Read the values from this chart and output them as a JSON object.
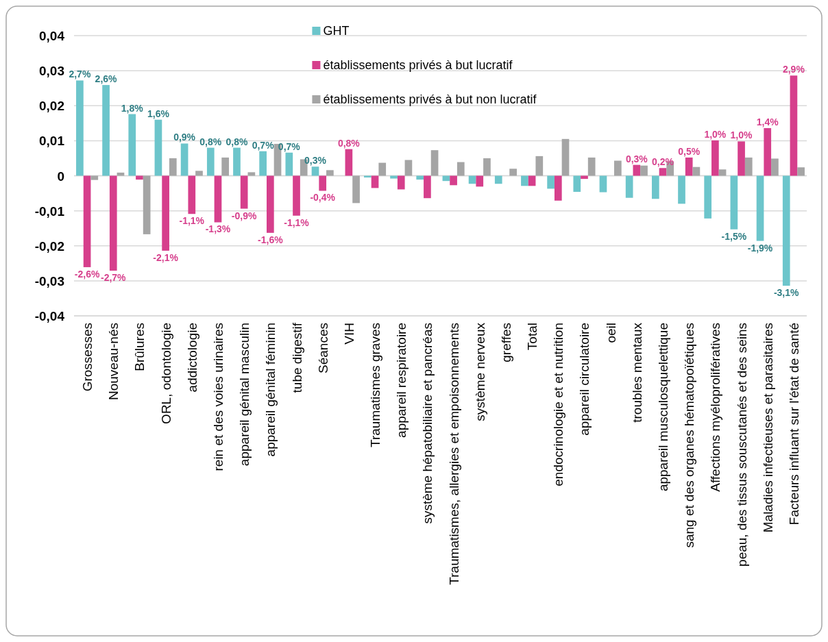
{
  "chart_data": {
    "type": "bar",
    "categories": [
      "Grossesses",
      "Nouveau-nés",
      "Brûlures",
      "ORL, odontologie",
      "addictologie",
      "rein et des voies urinaires",
      "appareil génital masculin",
      "appareil génital féminin",
      "tube digestif",
      "Séances",
      "VIH",
      "Traumatismes graves",
      "appareil respiratoire",
      "système hépatobiliaire et pancréas",
      "Traumatismes, allergies et empoisonnements",
      "système nerveux",
      "greffes",
      "Total",
      "endocrinologie et et nutrition",
      "appareil circulatoire",
      "oeil",
      "troubles mentaux",
      "appareil musculosquelettique",
      "sang et des organes hématopoïétiques",
      "Affections myéloprolifératives",
      "peau, des tissus souscutanés et des seins",
      "Maladies infectieuses et parasitaires",
      "Facteurs influant sur l'état de santé"
    ],
    "series": [
      {
        "name": "GHT",
        "color": "#6cc5cb",
        "values": [
          0.0272,
          0.0259,
          0.0176,
          0.016,
          0.0092,
          0.008,
          0.008,
          0.007,
          0.0066,
          0.0026,
          0,
          -0.0005,
          -0.0008,
          -0.0011,
          -0.0015,
          -0.0023,
          -0.0023,
          -0.0029,
          -0.0037,
          -0.0046,
          -0.0047,
          -0.0063,
          -0.0066,
          -0.008,
          -0.0122,
          -0.0153,
          -0.0186,
          -0.0314
        ],
        "value_labels": [
          "2,7%",
          "2,6%",
          "1,8%",
          "1,6%",
          "0,9%",
          "0,8%",
          "0,8%",
          "0,7%",
          "0,7%",
          "0,3%",
          null,
          null,
          null,
          null,
          null,
          null,
          null,
          null,
          null,
          null,
          null,
          null,
          null,
          null,
          null,
          "-1,5%",
          "-1,9%",
          "-3,1%"
        ]
      },
      {
        "name": "établissements privés à but lucratif",
        "color": "#d63f8c",
        "values": [
          -0.0261,
          -0.0271,
          -0.0011,
          -0.0214,
          -0.0109,
          -0.0133,
          -0.0094,
          -0.0163,
          -0.0114,
          -0.0043,
          0.0076,
          -0.0035,
          -0.0039,
          -0.0064,
          -0.0027,
          -0.0031,
          0,
          -0.0029,
          -0.0071,
          -0.0009,
          0,
          0.0031,
          0.0022,
          0.0052,
          0.0101,
          0.0098,
          0.0136,
          0.0286
        ],
        "value_labels": [
          "-2,6%",
          "-2,7%",
          null,
          "-2,1%",
          "-1,1%",
          "-1,3%",
          "-0,9%",
          "-1,6%",
          "-1,1%",
          "-0,4%",
          "0,8%",
          null,
          null,
          null,
          null,
          null,
          null,
          null,
          null,
          null,
          null,
          "0,3%",
          "0,2%",
          "0,5%",
          "1,0%",
          "1,0%",
          "1,4%",
          "2,9%"
        ]
      },
      {
        "name": "établissements privés à but non lucratif",
        "color": "#a5a5a5",
        "values": [
          -0.0012,
          0.0009,
          -0.0167,
          0.005,
          0.0014,
          0.0052,
          0.001,
          0.0091,
          0.0047,
          0.0016,
          -0.0078,
          0.0037,
          0.0045,
          0.0073,
          0.0039,
          0.005,
          0.002,
          0.0056,
          0.0105,
          0.0052,
          0.0043,
          0.0029,
          0.0041,
          0.0025,
          0.0018,
          0.0052,
          0.0049,
          0.0024
        ]
      }
    ],
    "ylim": [
      -0.04,
      0.04
    ],
    "yticks": [
      {
        "value": -0.04,
        "label": "-0,04"
      },
      {
        "value": -0.03,
        "label": "-0,03"
      },
      {
        "value": -0.02,
        "label": "-0,02"
      },
      {
        "value": -0.01,
        "label": "-0,01"
      },
      0,
      {
        "value": 0.01,
        "label": "0,01"
      },
      {
        "value": 0.02,
        "label": "0,02"
      },
      {
        "value": 0.03,
        "label": "0,03"
      },
      {
        "value": 0.04,
        "label": "0,04"
      }
    ],
    "grid": "y",
    "legend": "top"
  }
}
